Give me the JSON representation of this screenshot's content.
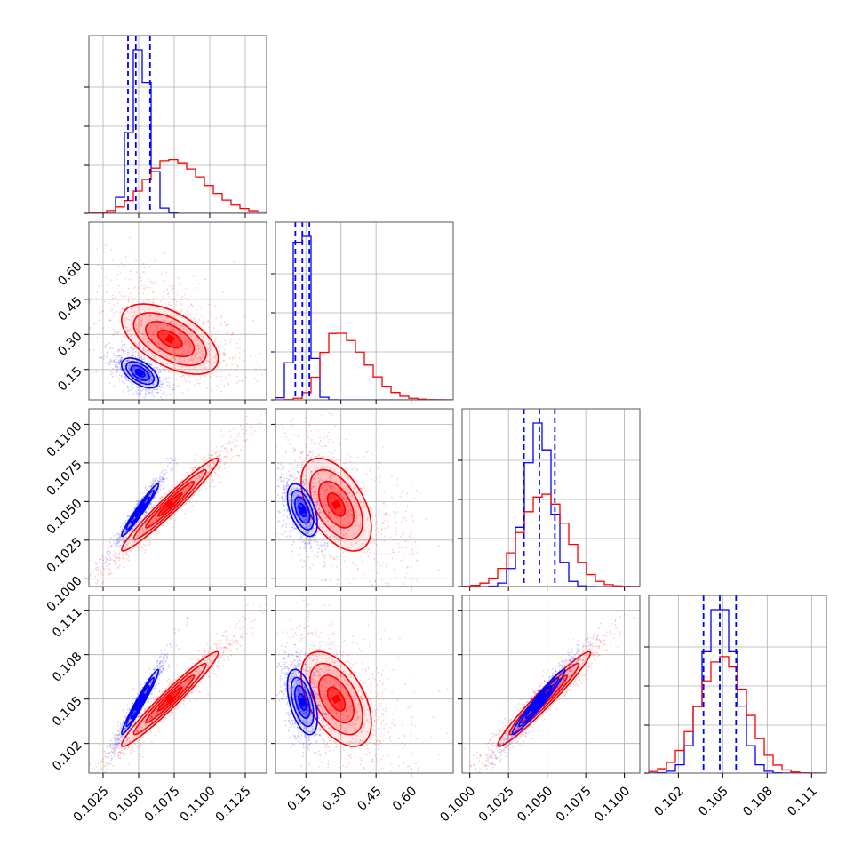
{
  "chart_data": {
    "type": "corner",
    "grid": true,
    "series": [
      {
        "name": "",
        "color": "#0000ff",
        "means": [
          0.1051,
          0.135,
          0.10445,
          0.1048
        ],
        "sds": [
          0.00065,
          0.032,
          0.00085,
          0.0011
        ],
        "quantiles": [
          [
            0.10425,
            0.1048,
            0.1058
          ],
          [
            0.105,
            0.135,
            0.165
          ],
          [
            0.1035,
            0.1045,
            0.1055
          ],
          [
            0.1037,
            0.1048,
            0.1059
          ]
        ]
      },
      {
        "name": "",
        "color": "#ff0000",
        "means": [
          0.1072,
          0.28,
          0.1048,
          0.105
        ],
        "sds": [
          0.0017,
          0.075,
          0.0015,
          0.0016
        ],
        "quantiles": null
      }
    ],
    "params": [
      {
        "lim": [
          0.1015,
          0.114
        ],
        "ticks": [
          0.1025,
          0.105,
          0.1075,
          0.11,
          0.1125
        ],
        "tick_labels": [
          "0.1025",
          "0.1050",
          "0.1075",
          "0.1100",
          "0.1125"
        ]
      },
      {
        "lim": [
          0.02,
          0.78
        ],
        "ticks": [
          0.15,
          0.3,
          0.45,
          0.6
        ],
        "tick_labels": [
          "0.15",
          "0.30",
          "0.45",
          "0.60"
        ]
      },
      {
        "lim": [
          0.0995,
          0.111
        ],
        "ticks": [
          0.1,
          0.1025,
          0.105,
          0.1075,
          0.11
        ],
        "tick_labels": [
          "0.1000",
          "0.1025",
          "0.1050",
          "0.1075",
          "0.1100"
        ]
      },
      {
        "lim": [
          0.1,
          0.112
        ],
        "ticks": [
          0.102,
          0.105,
          0.108,
          0.111
        ],
        "tick_labels": [
          "0.102",
          "0.105",
          "0.108",
          "0.111"
        ]
      }
    ],
    "correlations": {
      "0-1": -0.55,
      "0-2": 0.97,
      "0-3": 0.97,
      "1-2": -0.5,
      "1-3": -0.5,
      "2-3": 0.97
    }
  }
}
